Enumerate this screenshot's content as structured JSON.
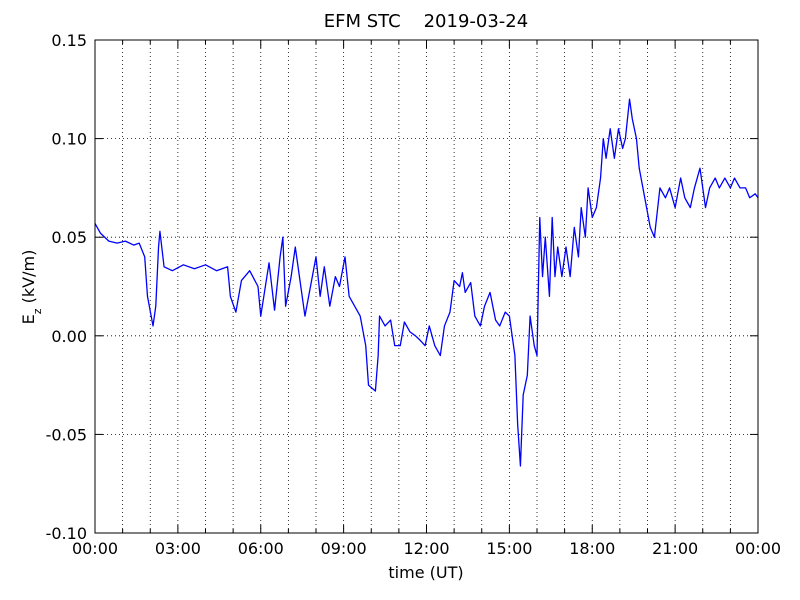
{
  "chart_data": {
    "type": "line",
    "title": "EFM STC    2019-03-24",
    "xlabel": "time (UT)",
    "ylabel": {
      "text": "E",
      "subscript": "z",
      "unit": " (kV/m)"
    },
    "xlim": [
      0,
      24
    ],
    "xticks": [
      {
        "value": 0,
        "label": "00:00"
      },
      {
        "value": 3,
        "label": "03:00"
      },
      {
        "value": 6,
        "label": "06:00"
      },
      {
        "value": 9,
        "label": "09:00"
      },
      {
        "value": 12,
        "label": "12:00"
      },
      {
        "value": 15,
        "label": "15:00"
      },
      {
        "value": 18,
        "label": "18:00"
      },
      {
        "value": 21,
        "label": "21:00"
      },
      {
        "value": 24,
        "label": "00:00"
      }
    ],
    "xminor_ticks": [
      1,
      2,
      4,
      5,
      7,
      8,
      10,
      11,
      13,
      14,
      16,
      17,
      19,
      20,
      22,
      23
    ],
    "ylim": [
      -0.1,
      0.15
    ],
    "yticks": [
      {
        "value": -0.1,
        "label": "-0.10"
      },
      {
        "value": -0.05,
        "label": "-0.05"
      },
      {
        "value": 0,
        "label": "0.00"
      },
      {
        "value": 0.05,
        "label": "0.05"
      },
      {
        "value": 0.1,
        "label": "0.10"
      },
      {
        "value": 0.15,
        "label": "0.15"
      }
    ],
    "grid": true,
    "series": [
      {
        "color": "#0000ff",
        "x": [
          0,
          0.2,
          0.5,
          0.8,
          1.1,
          1.4,
          1.6,
          1.8,
          1.9,
          2.1,
          2.2,
          2.3,
          2.35,
          2.5,
          2.8,
          3.2,
          3.6,
          4.0,
          4.4,
          4.8,
          4.9,
          5.1,
          5.3,
          5.6,
          5.9,
          6.0,
          6.3,
          6.5,
          6.7,
          6.8,
          6.9,
          7.1,
          7.25,
          7.4,
          7.6,
          7.8,
          8.0,
          8.15,
          8.3,
          8.5,
          8.7,
          8.85,
          9.05,
          9.2,
          9.4,
          9.6,
          9.8,
          9.9,
          10.15,
          10.25,
          10.3,
          10.5,
          10.7,
          10.85,
          11.05,
          11.2,
          11.4,
          11.6,
          11.75,
          11.95,
          12.1,
          12.3,
          12.5,
          12.65,
          12.85,
          13.0,
          13.2,
          13.3,
          13.4,
          13.6,
          13.75,
          13.95,
          14.1,
          14.3,
          14.5,
          14.65,
          14.85,
          15.0,
          15.2,
          15.3,
          15.4,
          15.5,
          15.65,
          15.75,
          15.9,
          16.0,
          16.1,
          16.2,
          16.3,
          16.45,
          16.55,
          16.65,
          16.75,
          16.9,
          17.05,
          17.2,
          17.35,
          17.5,
          17.6,
          17.75,
          17.85,
          18.0,
          18.15,
          18.3,
          18.4,
          18.5,
          18.65,
          18.8,
          18.95,
          19.1,
          19.2,
          19.35,
          19.45,
          19.6,
          19.7,
          19.9,
          20.1,
          20.25,
          20.45,
          20.65,
          20.8,
          21.0,
          21.2,
          21.35,
          21.55,
          21.7,
          21.9,
          22.1,
          22.25,
          22.45,
          22.6,
          22.8,
          23.0,
          23.15,
          23.35,
          23.55,
          23.7,
          23.9,
          24.0
        ],
        "values": [
          0.057,
          0.052,
          0.048,
          0.047,
          0.048,
          0.046,
          0.047,
          0.04,
          0.02,
          0.005,
          0.015,
          0.045,
          0.053,
          0.035,
          0.033,
          0.036,
          0.034,
          0.036,
          0.033,
          0.035,
          0.02,
          0.012,
          0.028,
          0.033,
          0.025,
          0.01,
          0.037,
          0.013,
          0.04,
          0.05,
          0.015,
          0.03,
          0.045,
          0.03,
          0.01,
          0.025,
          0.04,
          0.02,
          0.035,
          0.015,
          0.03,
          0.025,
          0.04,
          0.02,
          0.015,
          0.01,
          -0.005,
          -0.025,
          -0.028,
          -0.01,
          0.01,
          0.005,
          0.008,
          -0.005,
          -0.005,
          0.007,
          0.002,
          0,
          -0.002,
          -0.005,
          0.005,
          -0.005,
          -0.01,
          0.005,
          0.012,
          0.028,
          0.025,
          0.032,
          0.022,
          0.027,
          0.01,
          0.005,
          0.015,
          0.022,
          0.008,
          0.005,
          0.012,
          0.01,
          -0.01,
          -0.045,
          -0.066,
          -0.03,
          -0.02,
          0.01,
          -0.005,
          -0.01,
          0.06,
          0.03,
          0.05,
          0.02,
          0.06,
          0.03,
          0.045,
          0.03,
          0.045,
          0.03,
          0.055,
          0.04,
          0.065,
          0.05,
          0.075,
          0.06,
          0.065,
          0.08,
          0.1,
          0.09,
          0.105,
          0.09,
          0.105,
          0.095,
          0.1,
          0.12,
          0.11,
          0.1,
          0.085,
          0.07,
          0.055,
          0.05,
          0.075,
          0.07,
          0.075,
          0.065,
          0.08,
          0.07,
          0.065,
          0.075,
          0.085,
          0.065,
          0.075,
          0.08,
          0.075,
          0.08,
          0.075,
          0.08,
          0.075,
          0.075,
          0.07,
          0.072,
          0.07
        ]
      }
    ]
  }
}
